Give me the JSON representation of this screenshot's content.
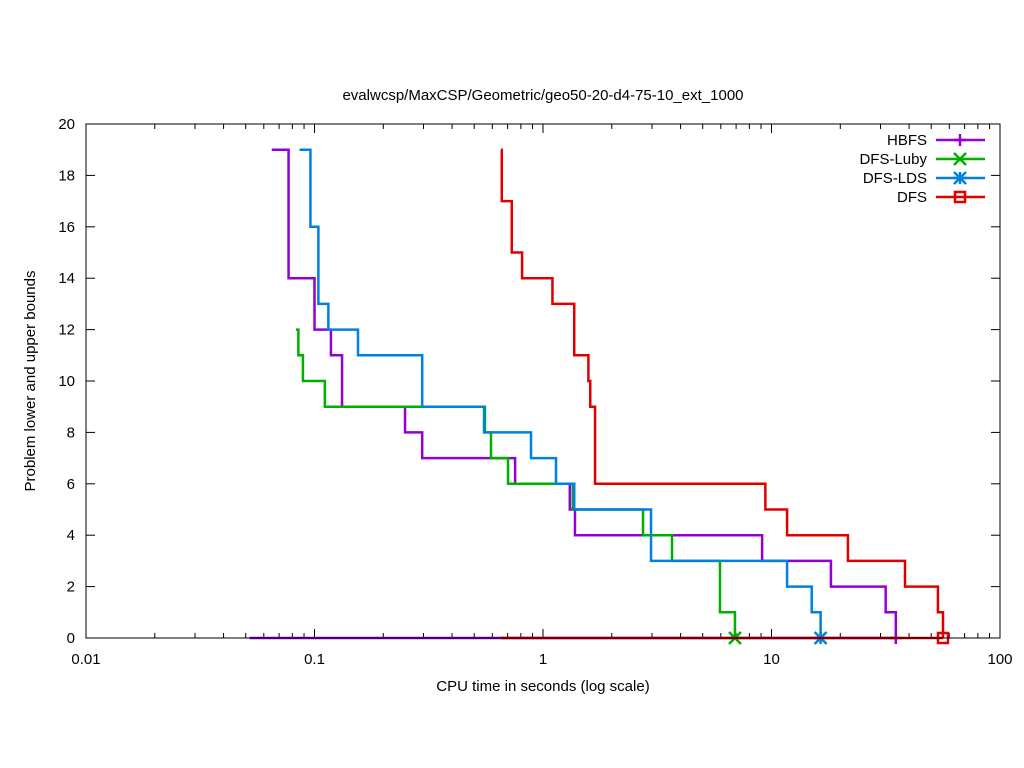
{
  "chart_data": {
    "type": "line",
    "title": "evalwcsp/MaxCSP/Geometric/geo50-20-d4-75-10_ext_1000",
    "xlabel": "CPU time in seconds (log scale)",
    "ylabel": "Problem lower and upper bounds",
    "xscale": "log",
    "xlim": [
      0.01,
      100
    ],
    "ylim": [
      0,
      20
    ],
    "xticks": [
      {
        "v": 0.01,
        "label": "0.01"
      },
      {
        "v": 0.1,
        "label": "0.1"
      },
      {
        "v": 1,
        "label": "1"
      },
      {
        "v": 10,
        "label": "10"
      },
      {
        "v": 100,
        "label": "100"
      }
    ],
    "yticks": [
      {
        "v": 0,
        "label": "0"
      },
      {
        "v": 2,
        "label": "2"
      },
      {
        "v": 4,
        "label": "4"
      },
      {
        "v": 6,
        "label": "6"
      },
      {
        "v": 8,
        "label": "8"
      },
      {
        "v": 10,
        "label": "10"
      },
      {
        "v": 12,
        "label": "12"
      },
      {
        "v": 14,
        "label": "14"
      },
      {
        "v": 16,
        "label": "16"
      },
      {
        "v": 18,
        "label": "18"
      },
      {
        "v": 20,
        "label": "20"
      }
    ],
    "grid": false,
    "legend_position": "top-right",
    "series": [
      {
        "name": "HBFS",
        "color": "#9400d3",
        "marker": "plus",
        "upper": [
          [
            0.065,
            19
          ],
          [
            0.077,
            14
          ],
          [
            0.1,
            12
          ],
          [
            0.118,
            11
          ],
          [
            0.132,
            9
          ],
          [
            0.249,
            8
          ],
          [
            0.296,
            7
          ],
          [
            0.755,
            6
          ],
          [
            1.31,
            5
          ],
          [
            1.38,
            4
          ],
          [
            9.1,
            3
          ],
          [
            18.2,
            2
          ],
          [
            31.6,
            1
          ],
          [
            35,
            0
          ]
        ],
        "lower": [
          [
            0.052,
            0
          ],
          [
            35,
            0
          ]
        ],
        "end_marker": [
          35,
          0
        ]
      },
      {
        "name": "DFS-Luby",
        "color": "#00b000",
        "marker": "cross",
        "upper": [
          [
            0.083,
            12
          ],
          [
            0.085,
            11
          ],
          [
            0.089,
            10
          ],
          [
            0.111,
            9
          ],
          [
            0.557,
            8
          ],
          [
            0.592,
            7
          ],
          [
            0.703,
            6
          ],
          [
            1.35,
            5
          ],
          [
            2.74,
            4
          ],
          [
            3.67,
            3
          ],
          [
            5.95,
            1
          ],
          [
            6.92,
            0
          ]
        ],
        "lower": [],
        "end_marker": [
          6.92,
          0
        ]
      },
      {
        "name": "DFS-LDS",
        "color": "#0080e0",
        "marker": "star",
        "upper": [
          [
            0.086,
            19
          ],
          [
            0.096,
            16
          ],
          [
            0.104,
            13
          ],
          [
            0.115,
            12
          ],
          [
            0.155,
            11
          ],
          [
            0.296,
            9
          ],
          [
            0.552,
            8
          ],
          [
            0.886,
            7
          ],
          [
            1.14,
            6
          ],
          [
            1.37,
            5
          ],
          [
            2.97,
            3
          ],
          [
            11.7,
            2
          ],
          [
            15.0,
            1
          ],
          [
            16.4,
            0
          ]
        ],
        "lower": [],
        "end_marker": [
          16.4,
          0
        ]
      },
      {
        "name": "DFS",
        "color": "#e00000",
        "marker": "square",
        "upper": [
          [
            0.655,
            19
          ],
          [
            0.66,
            17
          ],
          [
            0.73,
            15
          ],
          [
            0.81,
            14
          ],
          [
            1.1,
            13
          ],
          [
            1.37,
            11
          ],
          [
            1.58,
            10
          ],
          [
            1.61,
            9
          ],
          [
            1.69,
            6
          ],
          [
            9.4,
            5
          ],
          [
            11.7,
            4
          ],
          [
            21.6,
            3
          ],
          [
            38.4,
            2
          ],
          [
            53.5,
            1
          ],
          [
            56.3,
            0
          ]
        ],
        "lower": [
          [
            0.655,
            0
          ],
          [
            56.3,
            0
          ]
        ],
        "end_marker": [
          56.3,
          0
        ]
      }
    ]
  }
}
